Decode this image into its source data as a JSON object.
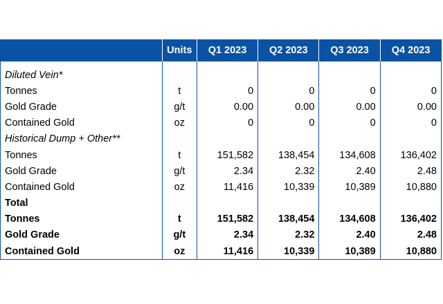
{
  "header": {
    "units": "Units",
    "quarters": [
      "Q1 2023",
      "Q2 2023",
      "Q3 2023",
      "Q4 2023"
    ]
  },
  "rows": [
    {
      "label": "Diluted Vein*",
      "kind": "section",
      "unit": "",
      "values": [
        "",
        "",
        "",
        ""
      ]
    },
    {
      "label": "Tonnes",
      "kind": "sub",
      "unit": "t",
      "values": [
        "0",
        "0",
        "0",
        "0"
      ]
    },
    {
      "label": "Gold Grade",
      "kind": "sub",
      "unit": "g/t",
      "values": [
        "0.00",
        "0.00",
        "0.00",
        "0.00"
      ]
    },
    {
      "label": "Contained Gold",
      "kind": "sub",
      "unit": "oz",
      "values": [
        "0",
        "0",
        "0",
        "0"
      ]
    },
    {
      "label": "Historical Dump + Other**",
      "kind": "section",
      "unit": "",
      "values": [
        "",
        "",
        "",
        ""
      ]
    },
    {
      "label": "Tonnes",
      "kind": "sub",
      "unit": "t",
      "values": [
        "151,582",
        "138,454",
        "134,608",
        "136,402"
      ]
    },
    {
      "label": "Gold Grade",
      "kind": "sub",
      "unit": "g/t",
      "values": [
        "2.34",
        "2.32",
        "2.40",
        "2.48"
      ]
    },
    {
      "label": "Contained Gold",
      "kind": "sub",
      "unit": "oz",
      "values": [
        "11,416",
        "10,339",
        "10,389",
        "10,880"
      ]
    },
    {
      "label": "Total",
      "kind": "total",
      "unit": "",
      "values": [
        "",
        "",
        "",
        ""
      ]
    },
    {
      "label": "Tonnes",
      "kind": "totalsub",
      "unit": "t",
      "values": [
        "151,582",
        "138,454",
        "134,608",
        "136,402"
      ]
    },
    {
      "label": "Gold Grade",
      "kind": "totalsub",
      "unit": "g/t",
      "values": [
        "2.34",
        "2.32",
        "2.40",
        "2.48"
      ]
    },
    {
      "label": "Contained Gold",
      "kind": "totalsub",
      "unit": "oz",
      "values": [
        "11,416",
        "10,339",
        "10,389",
        "10,880"
      ]
    }
  ],
  "colors": {
    "header_bg": "#0a52a4",
    "header_text": "#ffffff",
    "border": "#0a52a4"
  }
}
